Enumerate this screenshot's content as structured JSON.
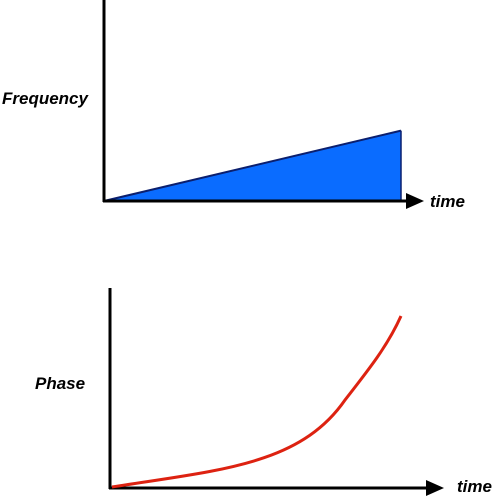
{
  "top_plot": {
    "ylabel": "Frequency",
    "xlabel": "time",
    "fill_color": "#0a6cff",
    "line_color": "#0b1f6e",
    "shape": "linear-ramp",
    "y_end_fraction": 0.35
  },
  "bottom_plot": {
    "ylabel": "Phase",
    "xlabel": "time",
    "curve_color": "#dd2211",
    "shape": "quadratic"
  },
  "axis_color": "#000000"
}
